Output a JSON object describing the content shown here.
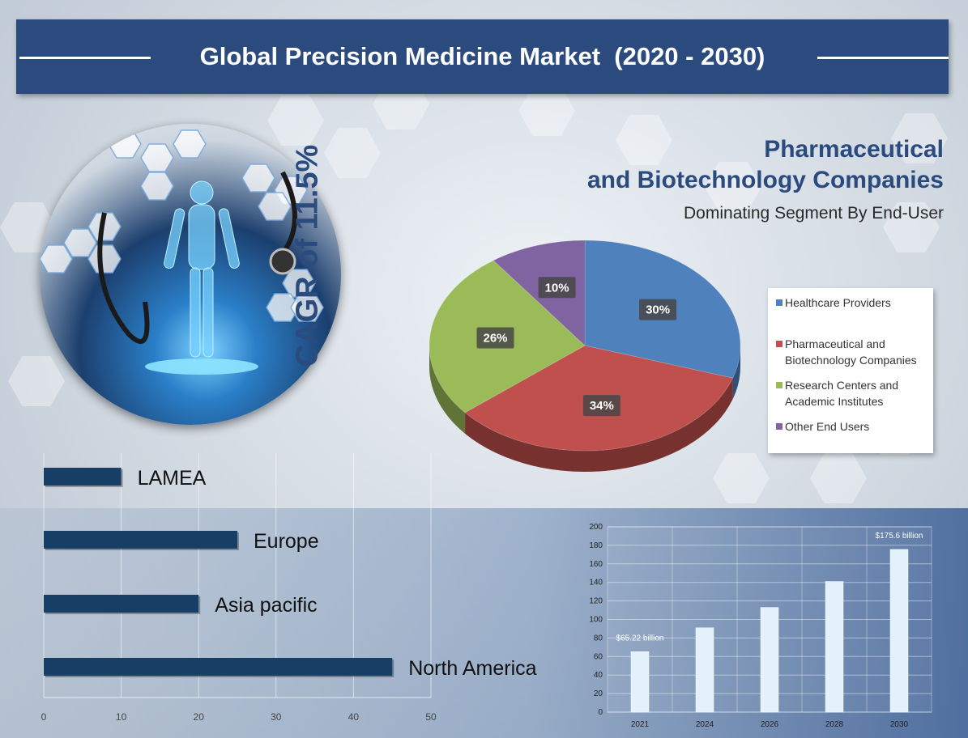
{
  "title": "Global Precision Medicine Market  (2020 - 2030)",
  "cagr_text": "CAGR of 11.5%",
  "highlight": {
    "line1": "Pharmaceutical",
    "line2": "and Biotechnology Companies",
    "subtitle": "Dominating Segment By End-User"
  },
  "colors": {
    "brand": "#2b4a7e",
    "healthcare": "#4f81bd",
    "pharma": "#c0504d",
    "research": "#9bbb59",
    "other": "#8064a2",
    "region_bar": "#173f66",
    "market_bar": "#e3f1fb"
  },
  "chart_data": [
    {
      "type": "pie",
      "slices": [
        {
          "label": "Healthcare Providers",
          "value": 30,
          "display": "30%"
        },
        {
          "label": "Pharmaceutical and Biotechnology Companies",
          "value": 34,
          "display": "34%"
        },
        {
          "label": "Research Centers and Academic Institutes",
          "value": 26,
          "display": "26%"
        },
        {
          "label": "Other End Users",
          "value": 10,
          "display": "10%"
        }
      ],
      "legend": [
        [
          "Healthcare Providers"
        ],
        [
          "Pharmaceutical and",
          "Biotechnology Companies"
        ],
        [
          "Research Centers and",
          "Academic Institutes"
        ],
        [
          "Other End Users"
        ]
      ],
      "legend_position": "right"
    },
    {
      "type": "bar",
      "orientation": "horizontal",
      "categories": [
        "LAMEA",
        "Europe",
        "Asia pacific",
        "North America"
      ],
      "values": [
        10,
        25,
        20,
        45
      ],
      "xlim": [
        0,
        50
      ],
      "xticks": [
        "0",
        "10",
        "20",
        "30",
        "40",
        "50"
      ],
      "grid": true
    },
    {
      "type": "bar",
      "categories": [
        "2021",
        "2024",
        "2026",
        "2028",
        "2030"
      ],
      "values": [
        65.22,
        91,
        113,
        141,
        175.6
      ],
      "ylim": [
        0,
        200
      ],
      "yticks": [
        "0",
        "20",
        "40",
        "60",
        "80",
        "100",
        "120",
        "140",
        "160",
        "180",
        "200"
      ],
      "annotations": [
        {
          "category": "2021",
          "text": "$65.22 billion"
        },
        {
          "category": "2030",
          "text": "$175.6 billion"
        }
      ],
      "grid": true
    }
  ]
}
